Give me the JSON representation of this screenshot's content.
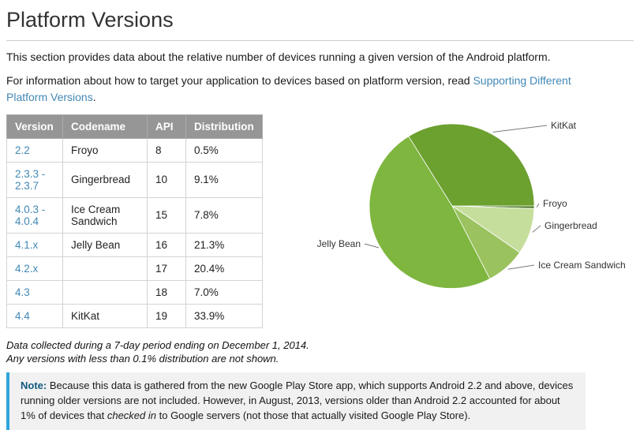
{
  "page": {
    "title": "Platform Versions",
    "intro": "This section provides data about the relative number of devices running a given version of the Android platform.",
    "target_text": "For information about how to target your application to devices based on platform version, read ",
    "target_link": "Supporting Different Platform Versions",
    "target_suffix": "."
  },
  "table": {
    "headers": [
      "Version",
      "Codename",
      "API",
      "Distribution"
    ],
    "rows": [
      {
        "version": "2.2",
        "codename": "Froyo",
        "api": "8",
        "distribution": "0.5%"
      },
      {
        "version": "2.3.3 - 2.3.7",
        "codename": "Gingerbread",
        "api": "10",
        "distribution": "9.1%"
      },
      {
        "version": "4.0.3 - 4.0.4",
        "codename": "Ice Cream Sandwich",
        "api": "15",
        "distribution": "7.8%"
      },
      {
        "version": "4.1.x",
        "codename": "Jelly Bean",
        "api": "16",
        "distribution": "21.3%"
      },
      {
        "version": "4.2.x",
        "codename": "",
        "api": "17",
        "distribution": "20.4%"
      },
      {
        "version": "4.3",
        "codename": "",
        "api": "18",
        "distribution": "7.0%"
      },
      {
        "version": "4.4",
        "codename": "KitKat",
        "api": "19",
        "distribution": "33.9%"
      }
    ]
  },
  "chart_data": {
    "type": "pie",
    "labels": [
      "Froyo",
      "Gingerbread",
      "Ice Cream Sandwich",
      "Jelly Bean",
      "KitKat"
    ],
    "values": [
      0.5,
      9.1,
      7.8,
      48.7,
      33.9
    ],
    "colors": [
      "#44751f",
      "#c6de9c",
      "#9ac25e",
      "#7eb63f",
      "#6ca02f"
    ],
    "start_angle_deg": 0,
    "direction": "clockwise",
    "legend": "callout-labels",
    "title": ""
  },
  "caption": {
    "line1": "Data collected during a 7-day period ending on December 1, 2014.",
    "line2": "Any versions with less than 0.1% distribution are not shown."
  },
  "note": {
    "label": "Note:",
    "body_before": " Because this data is gathered from the new Google Play Store app, which supports Android 2.2 and above, devices running older versions are not included. However, in August, 2013, versions older than Android 2.2 accounted for about 1% of devices that ",
    "italic": "checked in",
    "body_after": " to Google servers (not those that actually visited Google Play Store)."
  },
  "colors": {
    "link": "#4288b5",
    "table_header_bg": "#969696",
    "note_border": "#2fa7dc",
    "note_label": "#12597f"
  }
}
